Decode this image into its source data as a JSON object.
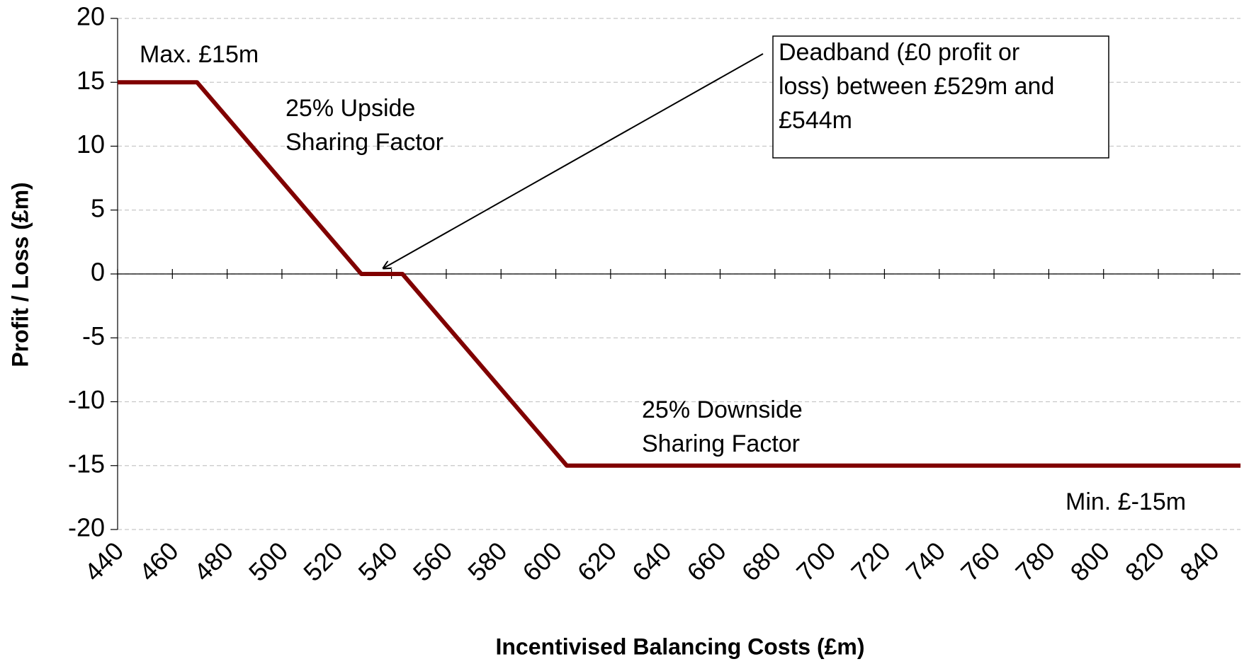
{
  "chart_data": {
    "type": "line",
    "x_label": "Incentivised Balancing Costs (£m)",
    "y_label": "Profit / Loss (£m)",
    "series": [
      {
        "name": "Profit / Loss",
        "color": "#800000",
        "x": [
          440,
          469,
          529,
          544,
          604,
          850
        ],
        "values": [
          15,
          15,
          0,
          0,
          -15,
          -15
        ]
      }
    ],
    "xlim": [
      440,
      850
    ],
    "xticks": [
      440,
      460,
      480,
      500,
      520,
      540,
      560,
      580,
      600,
      620,
      640,
      660,
      680,
      700,
      720,
      740,
      760,
      780,
      800,
      820,
      840
    ],
    "ylim": [
      -20,
      20
    ],
    "yticks": [
      -20,
      -15,
      -10,
      -5,
      0,
      5,
      10,
      15,
      20
    ],
    "grid": true,
    "annotations": [
      {
        "lines": [
          "Max. £15m"
        ]
      },
      {
        "lines": [
          "25% Upside",
          "Sharing Factor"
        ]
      },
      {
        "lines": [
          "Deadband (£0 profit or",
          "loss) between £529m and",
          "£544m"
        ],
        "boxed": true
      },
      {
        "lines": [
          "25% Downside",
          "Sharing Factor"
        ]
      },
      {
        "lines": [
          "Min. £-15m"
        ]
      }
    ]
  }
}
